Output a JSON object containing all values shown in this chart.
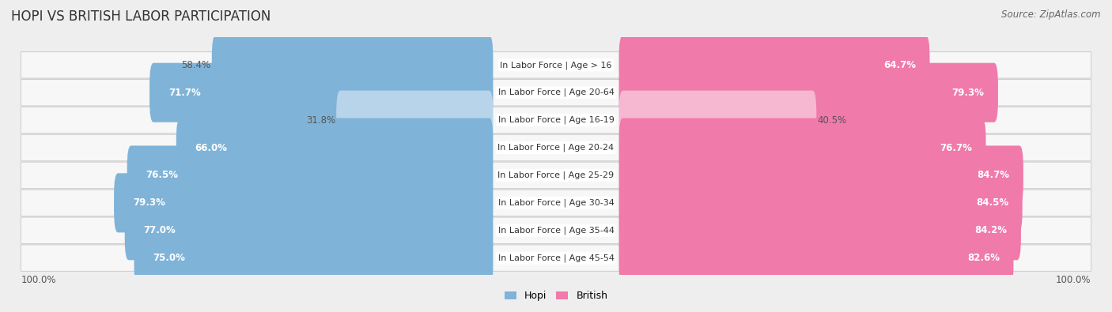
{
  "title": "HOPI VS BRITISH LABOR PARTICIPATION",
  "source": "Source: ZipAtlas.com",
  "categories": [
    "In Labor Force | Age > 16",
    "In Labor Force | Age 20-64",
    "In Labor Force | Age 16-19",
    "In Labor Force | Age 20-24",
    "In Labor Force | Age 25-29",
    "In Labor Force | Age 30-34",
    "In Labor Force | Age 35-44",
    "In Labor Force | Age 45-54"
  ],
  "hopi_values": [
    58.4,
    71.7,
    31.8,
    66.0,
    76.5,
    79.3,
    77.0,
    75.0
  ],
  "british_values": [
    64.7,
    79.3,
    40.5,
    76.7,
    84.7,
    84.5,
    84.2,
    82.6
  ],
  "hopi_color": "#7fb3d8",
  "hopi_color_light": "#b8d4ea",
  "british_color": "#f07aaa",
  "british_color_light": "#f5b8d0",
  "bg_color": "#eeeeee",
  "row_bg": "#f7f7f7",
  "title_fontsize": 12,
  "source_fontsize": 8.5,
  "bar_label_fontsize": 8.5,
  "category_fontsize": 8,
  "legend_fontsize": 9,
  "axis_label_fontsize": 8.5
}
